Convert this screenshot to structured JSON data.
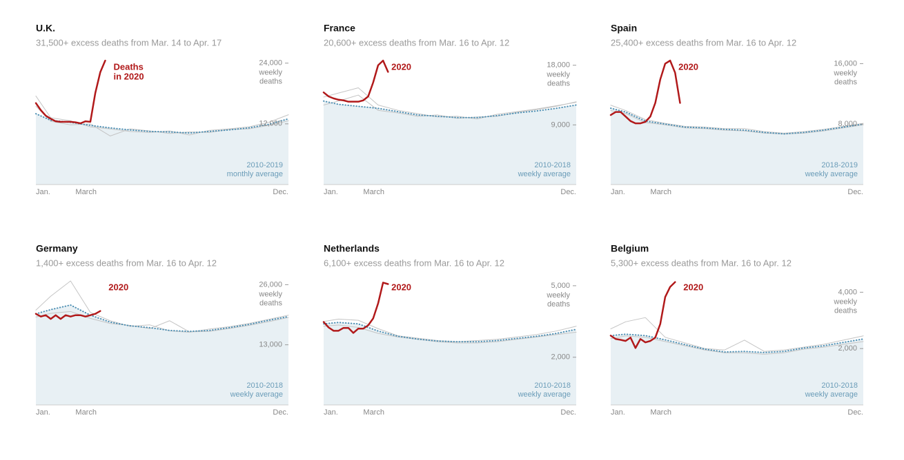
{
  "chart_data": [
    {
      "type": "line",
      "title": "U.K.",
      "subtitle": "31,500+ excess deaths from Mar. 14 to Apr. 17",
      "ylabel": [
        "weekly",
        "deaths"
      ],
      "x": [
        1,
        4,
        8,
        12,
        16,
        20,
        24,
        28,
        32,
        36,
        40,
        44,
        48,
        52
      ],
      "xlim": [
        1,
        52
      ],
      "xticks": [
        {
          "value": 1,
          "label": "Jan."
        },
        {
          "value": 9,
          "label": "March"
        },
        {
          "value": 52,
          "label": "Dec."
        }
      ],
      "ylim": [
        0,
        24500
      ],
      "yticks": [
        {
          "value": 12000,
          "label": "12,000"
        },
        {
          "value": 24000,
          "label": "24,000"
        }
      ],
      "series": [
        {
          "color": "#c4c4c4",
          "values": [
            17500,
            13200,
            12600,
            11400,
            11000,
            10500,
            10300,
            10600,
            9800,
            10700,
            11000,
            11400,
            12300,
            13800
          ]
        },
        {
          "color": "#c4c4c4",
          "values": [
            15500,
            12500,
            11800,
            12000,
            9600,
            11000,
            10600,
            10100,
            10400,
            10300,
            10900,
            11000,
            11700,
            12600
          ]
        },
        {
          "label": [
            "2010-2019",
            "monthly average"
          ],
          "color": "#4d8fb3",
          "fill": "#e8f0f4",
          "dotted": true,
          "values": [
            14000,
            12700,
            12300,
            11700,
            11200,
            10800,
            10500,
            10400,
            10200,
            10500,
            10800,
            11200,
            11900,
            13000
          ]
        },
        {
          "label": [
            "Deaths",
            "in 2020"
          ],
          "color": "#b1191a",
          "x": [
            1,
            2,
            3,
            4,
            5,
            6,
            7,
            8,
            9,
            10,
            11,
            12,
            13,
            14,
            15
          ],
          "values": [
            16100,
            14700,
            13600,
            13000,
            12500,
            12400,
            12400,
            12400,
            12300,
            12100,
            12500,
            12400,
            18100,
            22200,
            24500
          ]
        }
      ]
    },
    {
      "type": "line",
      "title": "France",
      "subtitle": "20,600+ excess deaths from Mar. 16 to Apr. 12",
      "ylabel": [
        "weekly",
        "deaths"
      ],
      "x": [
        1,
        4,
        8,
        12,
        16,
        20,
        24,
        28,
        32,
        36,
        40,
        44,
        48,
        52
      ],
      "xlim": [
        1,
        52
      ],
      "xticks": [
        {
          "value": 1,
          "label": "Jan."
        },
        {
          "value": 9,
          "label": "March"
        },
        {
          "value": 52,
          "label": "Dec."
        }
      ],
      "ylim": [
        0,
        18700
      ],
      "yticks": [
        {
          "value": 9000,
          "label": "9,000"
        },
        {
          "value": 18000,
          "label": "18,000"
        }
      ],
      "series": [
        {
          "color": "#c4c4c4",
          "values": [
            13200,
            13800,
            14600,
            12000,
            11200,
            10700,
            10200,
            10300,
            9900,
            10600,
            11000,
            11400,
            11900,
            12400
          ]
        },
        {
          "color": "#c4c4c4",
          "values": [
            12000,
            12600,
            13500,
            11200,
            10800,
            10300,
            10500,
            10000,
            10200,
            10300,
            10900,
            11300,
            11800,
            12500
          ]
        },
        {
          "label": [
            "2010-2018",
            "weekly average"
          ],
          "color": "#4d8fb3",
          "fill": "#e8f0f4",
          "dotted": true,
          "values": [
            12600,
            12100,
            11800,
            11500,
            11000,
            10500,
            10300,
            10100,
            10100,
            10400,
            10800,
            11100,
            11500,
            12000
          ]
        },
        {
          "label": [
            "2020"
          ],
          "color": "#b1191a",
          "x": [
            1,
            2,
            3,
            4,
            5,
            6,
            7,
            8,
            9,
            10,
            11,
            12,
            13,
            14
          ],
          "values": [
            13900,
            13300,
            13000,
            12800,
            12700,
            12500,
            12500,
            12500,
            12700,
            13300,
            15400,
            18000,
            18700,
            17000
          ]
        }
      ]
    },
    {
      "type": "line",
      "title": "Spain",
      "subtitle": "25,400+ excess deaths from Mar. 16 to Apr. 12",
      "ylabel": [
        "weekly",
        "deaths"
      ],
      "x": [
        1,
        4,
        8,
        12,
        16,
        20,
        24,
        28,
        32,
        36,
        40,
        44,
        48,
        52
      ],
      "xlim": [
        1,
        52
      ],
      "xticks": [
        {
          "value": 1,
          "label": "Jan."
        },
        {
          "value": 9,
          "label": "March"
        },
        {
          "value": 52,
          "label": "Dec."
        }
      ],
      "ylim": [
        0,
        16400
      ],
      "yticks": [
        {
          "value": 8000,
          "label": "8,000"
        },
        {
          "value": 16000,
          "label": "16,000"
        }
      ],
      "series": [
        {
          "color": "#c4c4c4",
          "values": [
            10500,
            9800,
            8600,
            8100,
            7700,
            7600,
            7400,
            7400,
            7000,
            6800,
            7000,
            7300,
            7700,
            8100
          ]
        },
        {
          "color": "#c4c4c4",
          "values": [
            9800,
            9400,
            8200,
            7900,
            7500,
            7400,
            7200,
            7100,
            6800,
            6700,
            6800,
            7100,
            7500,
            7900
          ]
        },
        {
          "label": [
            "2018-2019",
            "weekly average"
          ],
          "color": "#4d8fb3",
          "fill": "#e8f0f4",
          "dotted": true,
          "values": [
            10100,
            9600,
            8400,
            8000,
            7600,
            7500,
            7300,
            7200,
            6900,
            6700,
            6900,
            7200,
            7600,
            8000
          ]
        },
        {
          "label": [
            "2020"
          ],
          "color": "#b1191a",
          "x": [
            1,
            2,
            3,
            4,
            5,
            6,
            7,
            8,
            9,
            10,
            11,
            12,
            13,
            14,
            15
          ],
          "values": [
            9200,
            9600,
            9600,
            9000,
            8400,
            8100,
            8100,
            8300,
            9000,
            10800,
            13900,
            16000,
            16400,
            14800,
            10800
          ]
        }
      ]
    },
    {
      "type": "line",
      "title": "Germany",
      "subtitle": "1,400+ excess deaths from Mar. 16 to Apr. 12",
      "ylabel": [
        "weekly",
        "deaths"
      ],
      "x": [
        1,
        4,
        8,
        12,
        16,
        20,
        24,
        28,
        32,
        36,
        40,
        44,
        48,
        52
      ],
      "xlim": [
        1,
        52
      ],
      "xticks": [
        {
          "value": 1,
          "label": "Jan."
        },
        {
          "value": 9,
          "label": "March"
        },
        {
          "value": 52,
          "label": "Dec."
        }
      ],
      "ylim": [
        0,
        26800
      ],
      "yticks": [
        {
          "value": 13000,
          "label": "13,000"
        },
        {
          "value": 26000,
          "label": "26,000"
        }
      ],
      "series": [
        {
          "color": "#c4c4c4",
          "values": [
            20500,
            23500,
            26800,
            20000,
            18200,
            17000,
            17300,
            16000,
            15700,
            16400,
            16900,
            17600,
            18500,
            19400
          ]
        },
        {
          "color": "#c4c4c4",
          "values": [
            19000,
            19800,
            20200,
            18700,
            17600,
            17200,
            16500,
            18200,
            15800,
            15900,
            16500,
            17200,
            18000,
            18900
          ]
        },
        {
          "label": [
            "2010-2018",
            "weekly average"
          ],
          "color": "#4d8fb3",
          "fill": "#e8f0f4",
          "dotted": true,
          "values": [
            19700,
            20600,
            21600,
            19400,
            17900,
            17100,
            16700,
            16100,
            15900,
            16100,
            16700,
            17400,
            18300,
            19100
          ]
        },
        {
          "label": [
            "2020"
          ],
          "color": "#b1191a",
          "x": [
            1,
            2,
            3,
            4,
            5,
            6,
            7,
            8,
            9,
            10,
            11,
            12,
            13,
            14
          ],
          "values": [
            19700,
            19100,
            19400,
            18600,
            19400,
            18600,
            19400,
            19100,
            19400,
            19400,
            19100,
            19400,
            19700,
            20300
          ]
        }
      ]
    },
    {
      "type": "line",
      "title": "Netherlands",
      "subtitle": "6,100+ excess deaths from Mar. 16 to Apr. 12",
      "ylabel": [
        "weekly",
        "deaths"
      ],
      "x": [
        1,
        4,
        8,
        12,
        16,
        20,
        24,
        28,
        32,
        36,
        40,
        44,
        48,
        52
      ],
      "xlim": [
        1,
        52
      ],
      "xticks": [
        {
          "value": 1,
          "label": "Jan."
        },
        {
          "value": 9,
          "label": "March"
        },
        {
          "value": 52,
          "label": "Dec."
        }
      ],
      "ylim": [
        0,
        5200
      ],
      "yticks": [
        {
          "value": 2000,
          "label": "2,000"
        },
        {
          "value": 5000,
          "label": "5,000"
        }
      ],
      "series": [
        {
          "color": "#c4c4c4",
          "values": [
            3500,
            3600,
            3550,
            3200,
            2900,
            2800,
            2700,
            2650,
            2700,
            2750,
            2850,
            2950,
            3100,
            3300
          ]
        },
        {
          "color": "#c4c4c4",
          "values": [
            3300,
            3350,
            3250,
            3000,
            2850,
            2750,
            2650,
            2600,
            2600,
            2650,
            2750,
            2850,
            2950,
            3050
          ]
        },
        {
          "label": [
            "2010-2018",
            "weekly average"
          ],
          "color": "#4d8fb3",
          "fill": "#e8f0f4",
          "dotted": true,
          "values": [
            3400,
            3460,
            3400,
            3100,
            2880,
            2760,
            2680,
            2650,
            2650,
            2700,
            2790,
            2880,
            3000,
            3170
          ]
        },
        {
          "label": [
            "2020"
          ],
          "color": "#b1191a",
          "x": [
            1,
            2,
            3,
            4,
            5,
            6,
            7,
            8,
            9,
            10,
            11,
            12,
            13,
            14
          ],
          "values": [
            3480,
            3250,
            3110,
            3110,
            3230,
            3230,
            3020,
            3200,
            3200,
            3340,
            3630,
            4260,
            5130,
            5070
          ]
        }
      ]
    },
    {
      "type": "line",
      "title": "Belgium",
      "subtitle": "5,300+ excess deaths from Mar. 16 to Apr. 12",
      "ylabel": [
        "weekly",
        "deaths"
      ],
      "x": [
        1,
        4,
        8,
        12,
        16,
        20,
        24,
        28,
        32,
        36,
        40,
        44,
        48,
        52
      ],
      "xlim": [
        1,
        52
      ],
      "xticks": [
        {
          "value": 1,
          "label": "Jan."
        },
        {
          "value": 9,
          "label": "March"
        },
        {
          "value": 52,
          "label": "Dec."
        }
      ],
      "ylim": [
        0,
        4400
      ],
      "yticks": [
        {
          "value": 2000,
          "label": "2,000"
        },
        {
          "value": 4000,
          "label": "4,000"
        }
      ],
      "series": [
        {
          "color": "#c4c4c4",
          "values": [
            2700,
            2950,
            3100,
            2400,
            2200,
            2000,
            1950,
            2300,
            1900,
            1950,
            2050,
            2150,
            2300,
            2450
          ]
        },
        {
          "color": "#c4c4c4",
          "values": [
            2350,
            2450,
            2400,
            2250,
            2100,
            1950,
            1850,
            1850,
            1800,
            1850,
            1980,
            2050,
            2150,
            2250
          ]
        },
        {
          "label": [
            "2010-2018",
            "weekly average"
          ],
          "color": "#4d8fb3",
          "fill": "#e8f0f4",
          "dotted": true,
          "values": [
            2460,
            2510,
            2460,
            2310,
            2140,
            1980,
            1880,
            1900,
            1860,
            1900,
            2020,
            2100,
            2220,
            2340
          ]
        },
        {
          "label": [
            "2020"
          ],
          "color": "#b1191a",
          "x": [
            1,
            2,
            3,
            4,
            5,
            6,
            7,
            8,
            9,
            10,
            11,
            12,
            13,
            14
          ],
          "values": [
            2460,
            2340,
            2310,
            2270,
            2390,
            2020,
            2340,
            2220,
            2270,
            2390,
            2870,
            3830,
            4190,
            4360
          ]
        }
      ]
    }
  ]
}
